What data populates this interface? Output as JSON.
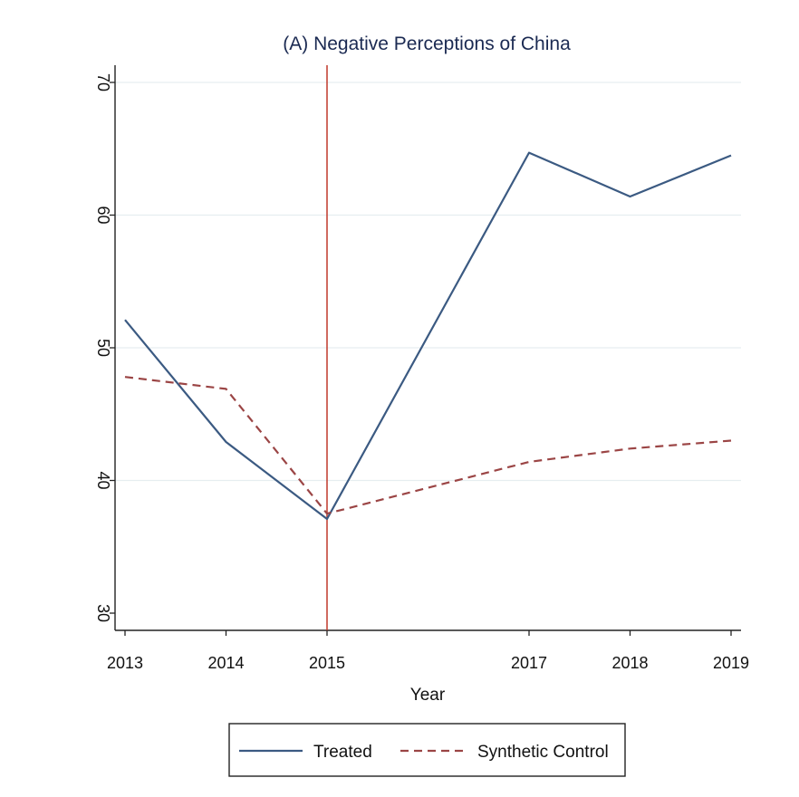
{
  "chart_data": {
    "type": "line",
    "title": "(A) Negative Perceptions of China",
    "xlabel": "Year",
    "ylabel": "",
    "x": [
      2013,
      2014,
      2015,
      2017,
      2018,
      2019
    ],
    "x_tick_labels": [
      "2013",
      "2014",
      "2015",
      "2017",
      "2018",
      "2019"
    ],
    "xlim": [
      2013,
      2019
    ],
    "ylim": [
      29,
      71
    ],
    "y_ticks": [
      30,
      40,
      50,
      60,
      70
    ],
    "y_tick_labels": [
      "30",
      "40",
      "50",
      "60",
      "70"
    ],
    "grid": true,
    "legend_position": "bottom",
    "vertical_reference_line": {
      "x": 2015,
      "color": "#c0392b"
    },
    "series": [
      {
        "name": "Treated",
        "values": [
          52.1,
          42.9,
          37.1,
          64.7,
          61.4,
          64.5
        ],
        "color": "#3b5a82",
        "style": "solid"
      },
      {
        "name": "Synthetic Control",
        "values": [
          47.8,
          46.9,
          37.5,
          41.4,
          42.4,
          43.0
        ],
        "color": "#9b4545",
        "style": "dashed"
      }
    ]
  }
}
